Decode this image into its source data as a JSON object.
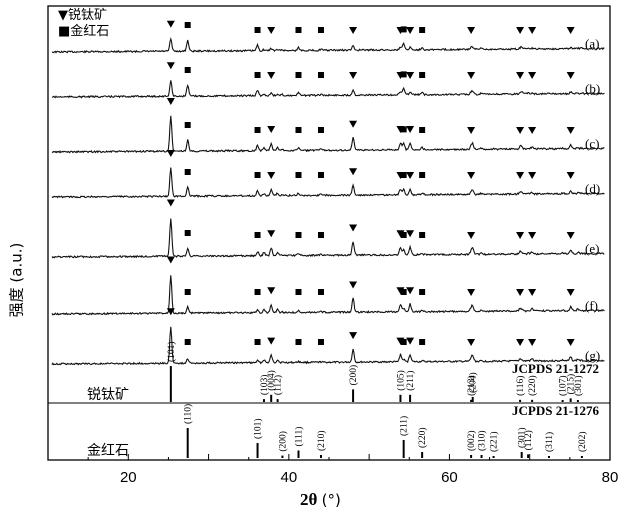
{
  "chart_data": {
    "type": "line",
    "xlabel": "2θ",
    "xunit": "(°)",
    "ylabel": "强度 (a.u.)",
    "xlim": [
      10,
      80
    ],
    "xticks": [
      20,
      40,
      60,
      80
    ],
    "legend": [
      {
        "marker": "triangle",
        "label": "锐钛矿"
      },
      {
        "marker": "square",
        "label": "金红石"
      }
    ],
    "series": [
      {
        "name": "(a)",
        "baseline": 40,
        "anatase_rel": 0.35,
        "rutile_rel": 0.55
      },
      {
        "name": "(b)",
        "baseline": 85,
        "anatase_rel": 0.45,
        "rutile_rel": 0.55
      },
      {
        "name": "(c)",
        "baseline": 140,
        "anatase_rel": 1.0,
        "rutile_rel": 0.55
      },
      {
        "name": "(d)",
        "baseline": 185,
        "anatase_rel": 0.8,
        "rutile_rel": 0.45
      },
      {
        "name": "(e)",
        "baseline": 245,
        "anatase_rel": 1.1,
        "rutile_rel": 0.4
      },
      {
        "name": "(f)",
        "baseline": 302,
        "anatase_rel": 1.1,
        "rutile_rel": 0.3
      },
      {
        "name": "(g)",
        "baseline": 352,
        "anatase_rel": 1.05,
        "rutile_rel": 0.2
      }
    ],
    "anatase_peaks": [
      {
        "two_theta": 25.3,
        "hkl": "(101)",
        "intensity": 100
      },
      {
        "two_theta": 36.9,
        "hkl": "(103)",
        "intensity": 8
      },
      {
        "two_theta": 37.8,
        "hkl": "(004)",
        "intensity": 20
      },
      {
        "two_theta": 38.6,
        "hkl": "(112)",
        "intensity": 8
      },
      {
        "two_theta": 48.0,
        "hkl": "(200)",
        "intensity": 35
      },
      {
        "two_theta": 53.9,
        "hkl": "(105)",
        "intensity": 20
      },
      {
        "two_theta": 55.1,
        "hkl": "(211)",
        "intensity": 20
      },
      {
        "two_theta": 62.7,
        "hkl": "(213)",
        "intensity": 6
      },
      {
        "two_theta": 62.9,
        "hkl": "(204)",
        "intensity": 14
      },
      {
        "two_theta": 68.8,
        "hkl": "(116)",
        "intensity": 6
      },
      {
        "two_theta": 70.3,
        "hkl": "(220)",
        "intensity": 6
      },
      {
        "two_theta": 74.1,
        "hkl": "(107)",
        "intensity": 2
      },
      {
        "two_theta": 75.1,
        "hkl": "(215)",
        "intensity": 10
      },
      {
        "two_theta": 76.0,
        "hkl": "(301)",
        "intensity": 4
      }
    ],
    "rutile_peaks": [
      {
        "two_theta": 27.4,
        "hkl": "(110)",
        "intensity": 100
      },
      {
        "two_theta": 36.1,
        "hkl": "(101)",
        "intensity": 50
      },
      {
        "two_theta": 39.2,
        "hkl": "(200)",
        "intensity": 8
      },
      {
        "two_theta": 41.2,
        "hkl": "(111)",
        "intensity": 25
      },
      {
        "two_theta": 44.0,
        "hkl": "(210)",
        "intensity": 10
      },
      {
        "two_theta": 54.3,
        "hkl": "(211)",
        "intensity": 60
      },
      {
        "two_theta": 56.6,
        "hkl": "(220)",
        "intensity": 20
      },
      {
        "two_theta": 62.7,
        "hkl": "(002)",
        "intensity": 10
      },
      {
        "two_theta": 64.0,
        "hkl": "(310)",
        "intensity": 10
      },
      {
        "two_theta": 65.5,
        "hkl": "(221)",
        "intensity": 2
      },
      {
        "two_theta": 69.0,
        "hkl": "(301)",
        "intensity": 20
      },
      {
        "two_theta": 69.8,
        "hkl": "(112)",
        "intensity": 12
      },
      {
        "two_theta": 72.4,
        "hkl": "(311)",
        "intensity": 2
      },
      {
        "two_theta": 76.5,
        "hkl": "(202)",
        "intensity": 4
      }
    ],
    "references": {
      "anatase": {
        "label": "锐钛矿",
        "card": "JCPDS 21-1272"
      },
      "rutile": {
        "label": "金红石",
        "card": "JCPDS 21-1276"
      }
    },
    "pattern_markers": {
      "anatase": [
        25.3,
        37.8,
        48.0,
        53.9,
        55.1,
        62.7,
        68.8,
        70.3,
        75.1
      ],
      "rutile": [
        27.4,
        36.1,
        41.2,
        44.0,
        54.3,
        56.6
      ]
    }
  }
}
